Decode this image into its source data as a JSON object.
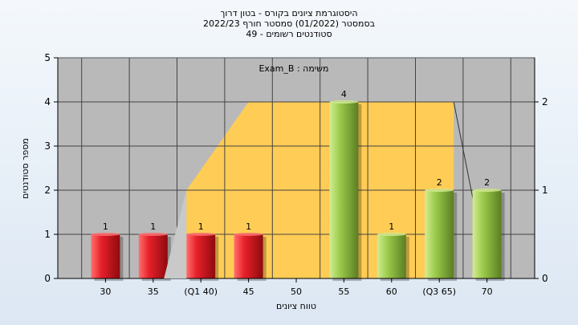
{
  "chart_data": {
    "type": "bar",
    "title_lines": [
      "היסטוגרמת ציונים בקורס - בטון דרוך",
      "בסמסטר  (01/2022)  סמסטר חורף 2022/23",
      "סטודנטים רשומים - 49"
    ],
    "task_label": "משימה : Exam_B",
    "xlabel": "טווח ציונים",
    "ylabel": "מספר סטודנטים",
    "ylim": [
      0,
      5
    ],
    "y_ticks": [
      0,
      1,
      2,
      3,
      4,
      5
    ],
    "y2_ticks": [
      0,
      1,
      2
    ],
    "categories": [
      "30",
      "35",
      "(Q1 40)",
      "45",
      "50",
      "55",
      "60",
      "(Q3 65)",
      "70"
    ],
    "values": [
      1,
      1,
      1,
      1,
      0,
      4,
      1,
      2,
      2
    ],
    "data_labels": [
      "1",
      "1",
      "1",
      "1",
      "",
      "4",
      "1",
      "2",
      "2"
    ],
    "bar_groups": [
      "red",
      "red",
      "red",
      "red",
      "none",
      "green",
      "green",
      "green",
      "green"
    ],
    "quartile_band": {
      "from_category_index": 2,
      "to_category_index": 7,
      "level": 4
    }
  },
  "colors": {
    "plot_bg": "#b9b9b9",
    "band": "#ffcc55",
    "red_light": "#ff7070",
    "red_mid": "#e8202a",
    "red_dark": "#8e0a0e",
    "green_light": "#d4ec94",
    "green_mid": "#9ccc4c",
    "green_dark": "#5a7e22"
  }
}
